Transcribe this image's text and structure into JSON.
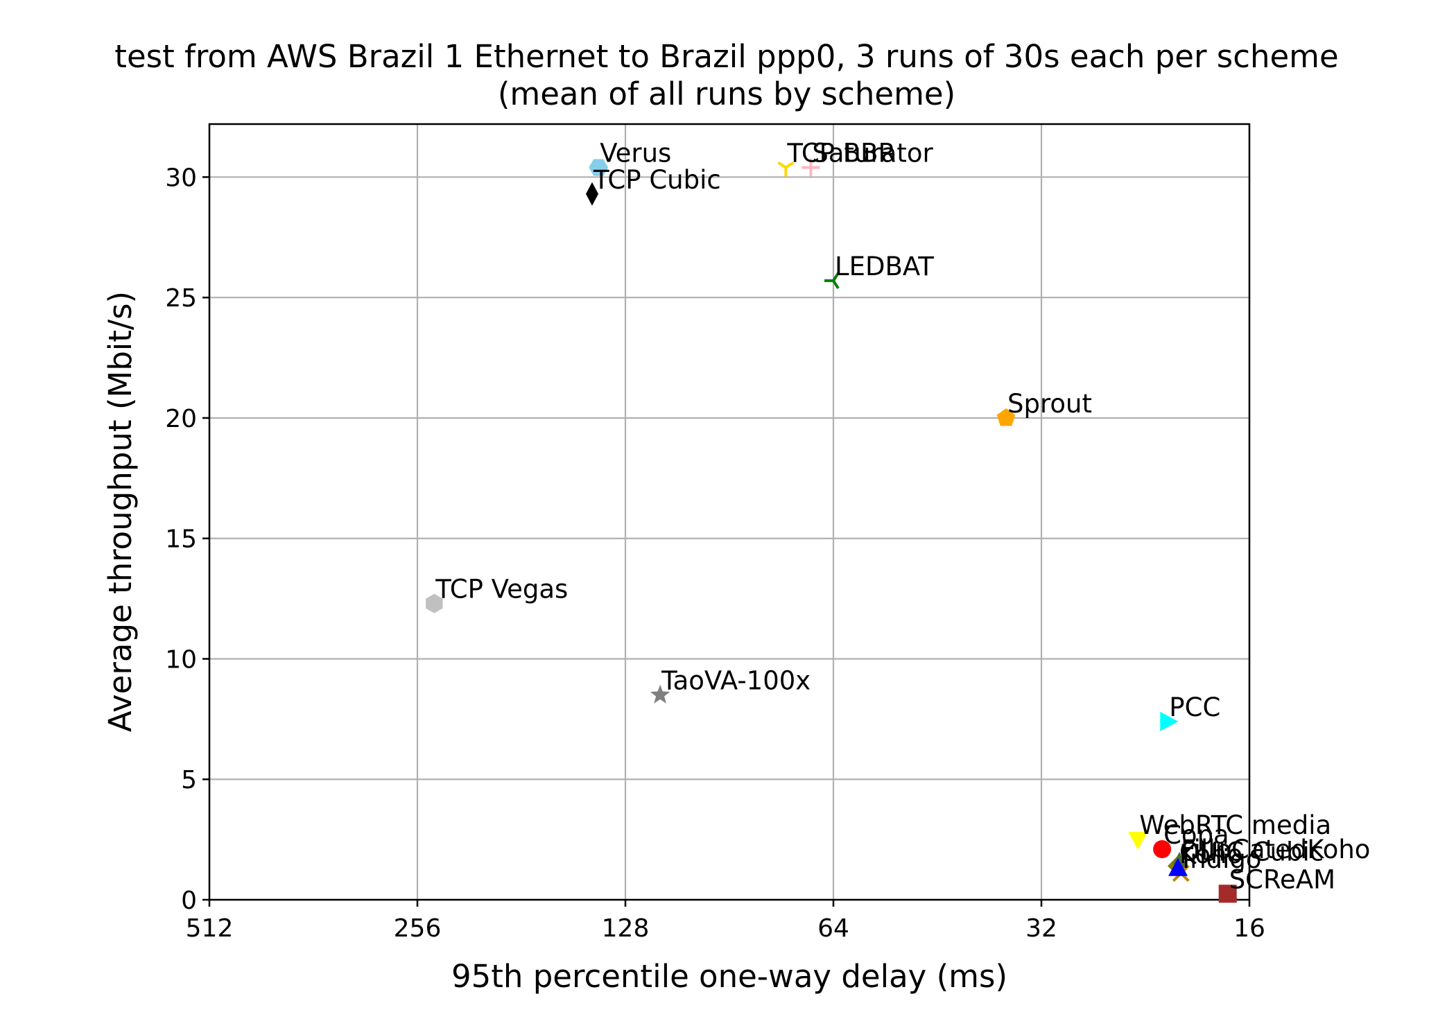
{
  "chart_data": {
    "type": "scatter",
    "title_line1": "test from AWS Brazil 1 Ethernet to Brazil ppp0, 3 runs of 30s each per scheme",
    "title_line2": "(mean of all runs by scheme)",
    "xlabel": "95th percentile one-way delay (ms)",
    "ylabel": "Average throughput (Mbit/s)",
    "x_scale": "log2",
    "x_inverted": true,
    "xlim": [
      512,
      16
    ],
    "ylim": [
      0,
      32.2
    ],
    "x_ticks": [
      512,
      256,
      128,
      64,
      32,
      16
    ],
    "x_tick_labels": [
      "512",
      "256",
      "128",
      "64",
      "32",
      "16"
    ],
    "y_ticks": [
      0,
      5,
      10,
      15,
      20,
      25,
      30
    ],
    "y_tick_labels": [
      "0",
      "5",
      "10",
      "15",
      "20",
      "25",
      "30"
    ],
    "grid": true,
    "points": [
      {
        "name": "Verus",
        "x": 140,
        "y": 30.4,
        "color": "#87ceeb",
        "marker": "hexagon2"
      },
      {
        "name": "TCP Cubic",
        "x": 143,
        "y": 29.3,
        "color": "#000000",
        "marker": "thin-diamond"
      },
      {
        "name": "TCP BBR",
        "x": 75,
        "y": 30.4,
        "color": "#ffd700",
        "marker": "tri-down"
      },
      {
        "name": "Saturator",
        "x": 69,
        "y": 30.4,
        "color": "#ffb6c1",
        "marker": "plus"
      },
      {
        "name": "LEDBAT",
        "x": 64,
        "y": 25.7,
        "color": "#008000",
        "marker": "tri-left"
      },
      {
        "name": "Sprout",
        "x": 36,
        "y": 20.0,
        "color": "#ffa500",
        "marker": "pentagon"
      },
      {
        "name": "TCP Vegas",
        "x": 242,
        "y": 12.3,
        "color": "#c0c0c0",
        "marker": "hexagon1"
      },
      {
        "name": "TaoVA-100x",
        "x": 114,
        "y": 8.5,
        "color": "#808080",
        "marker": "star"
      },
      {
        "name": "PCC",
        "x": 21.0,
        "y": 7.4,
        "color": "#00ffff",
        "marker": "triangle-right"
      },
      {
        "name": "WebRTC media",
        "x": 23.2,
        "y": 2.5,
        "color": "#ffff00",
        "marker": "triangle-down"
      },
      {
        "name": "Copa",
        "x": 21.4,
        "y": 2.1,
        "color": "#ff0000",
        "marker": "circle"
      },
      {
        "name": "QUIC Cubic",
        "x": 20.3,
        "y": 1.4,
        "color": "#808000",
        "marker": "diamond"
      },
      {
        "name": "Indigo",
        "x": 20.1,
        "y": 1.1,
        "color": "#b8860b",
        "marker": "x"
      },
      {
        "name": "FillpCatedKoho",
        "x": 20.2,
        "y": 1.5,
        "color": "#556b2f",
        "marker": "thin-diamond"
      },
      {
        "name": "Koho",
        "x": 20.3,
        "y": 1.3,
        "color": "#0000ff",
        "marker": "triangle-up"
      },
      {
        "name": "SCReAM",
        "x": 17.2,
        "y": 0.25,
        "color": "#a52a2a",
        "marker": "square"
      }
    ]
  }
}
